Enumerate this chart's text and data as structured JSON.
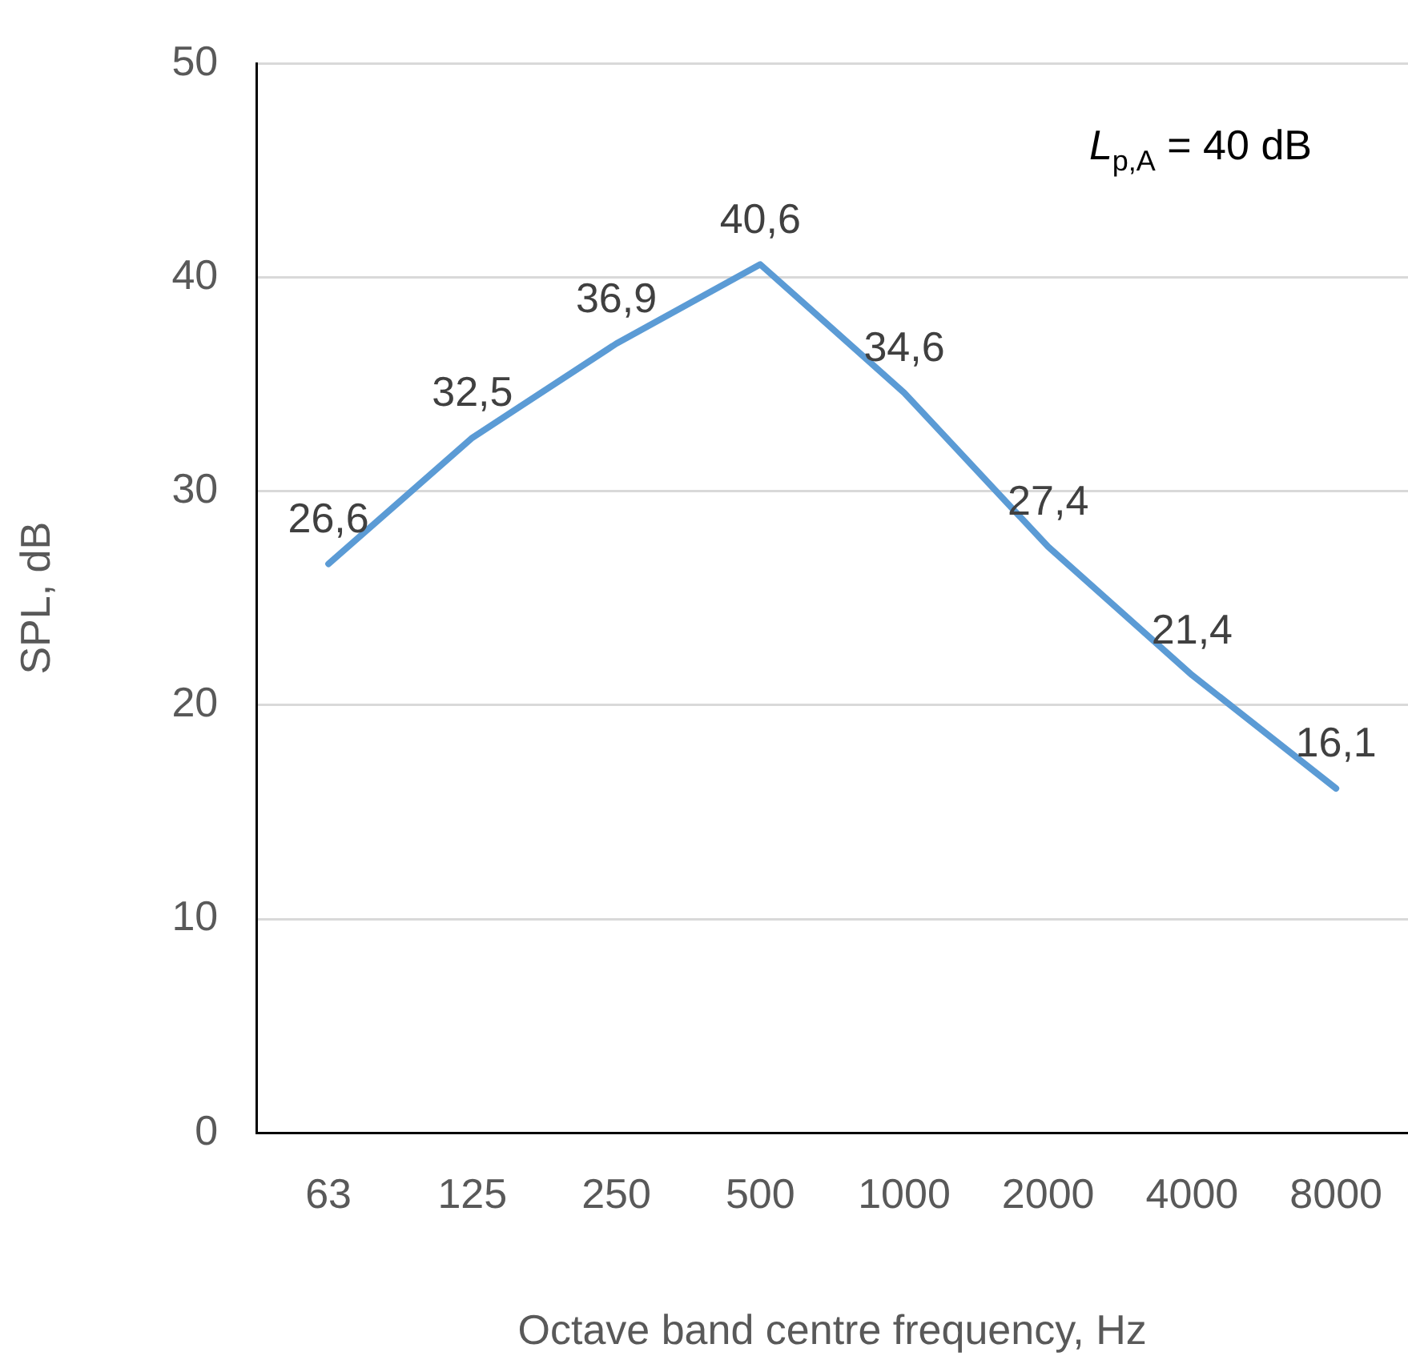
{
  "chart_data": {
    "type": "line",
    "xlabel": "Octave band centre frequency, Hz",
    "ylabel": "SPL, dB",
    "categories": [
      "63",
      "125",
      "250",
      "500",
      "1000",
      "2000",
      "4000",
      "8000"
    ],
    "series": [
      {
        "color": "#5b9bd5",
        "values": [
          26.6,
          32.5,
          36.9,
          40.6,
          34.6,
          27.4,
          21.4,
          16.1
        ],
        "value_labels": [
          "26,6",
          "32,5",
          "36,9",
          "40,6",
          "34,6",
          "27,4",
          "21,4",
          "16,1"
        ]
      }
    ],
    "ylim": [
      0,
      50
    ],
    "yticks": [
      0,
      10,
      20,
      30,
      40,
      50
    ],
    "grid": "y",
    "legend": false,
    "marker": "none",
    "line_style": "solid",
    "annotations": [
      "L$_{p,A}$ = 40 dB"
    ]
  }
}
